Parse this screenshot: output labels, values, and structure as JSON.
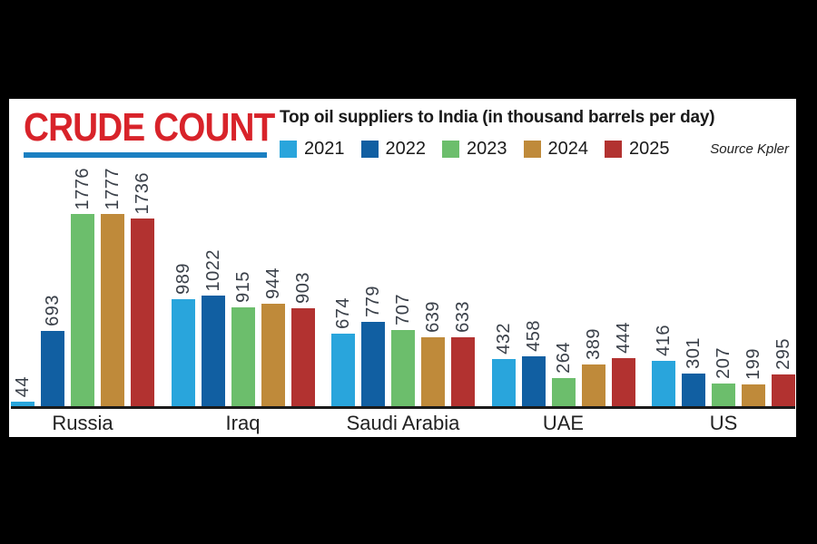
{
  "header": {
    "title": "CRUDE COUNT",
    "subtitle": "Top oil suppliers to India (in thousand barrels per day)",
    "source": "Source Kpler"
  },
  "colors": {
    "background": "#000000",
    "panel": "#ffffff",
    "title_red": "#d8232a",
    "underline_blue": "#1a7fc1",
    "axis": "#1a1a1a",
    "value_label": "#3a4049"
  },
  "chart_data": {
    "type": "bar",
    "title": "Top oil suppliers to India (in thousand barrels per day)",
    "source": "Source Kpler",
    "categories": [
      "Russia",
      "Iraq",
      "Saudi Arabia",
      "UAE",
      "US"
    ],
    "series": [
      {
        "name": "2021",
        "color": "#29a5dc",
        "values": [
          44,
          989,
          674,
          432,
          416
        ]
      },
      {
        "name": "2022",
        "color": "#115fa2",
        "values": [
          693,
          1022,
          779,
          458,
          301
        ]
      },
      {
        "name": "2023",
        "color": "#6cbe6c",
        "values": [
          1776,
          915,
          707,
          264,
          207
        ]
      },
      {
        "name": "2024",
        "color": "#bf8a3a",
        "values": [
          1777,
          944,
          639,
          389,
          199
        ]
      },
      {
        "name": "2025",
        "color": "#b23230",
        "values": [
          1736,
          903,
          633,
          444,
          295
        ]
      }
    ],
    "value_labels": true,
    "value_label_rotation": -90,
    "ylim": [
      0,
      1777
    ],
    "grid": false,
    "legend_position": "top"
  }
}
